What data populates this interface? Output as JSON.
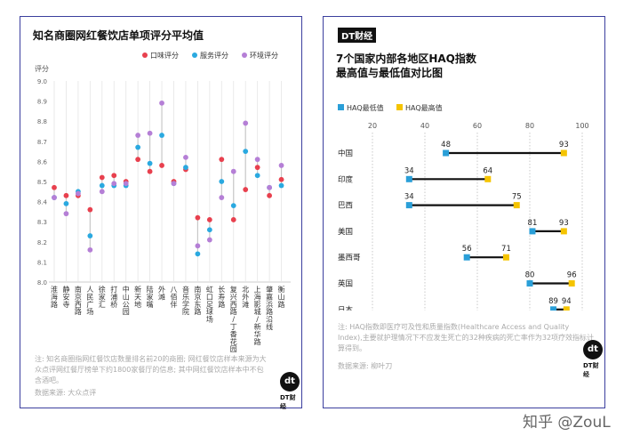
{
  "left_panel": {
    "title": "知名商圈网红餐饮店单项评分平均值",
    "note": "注: 知名商圈指网红餐饮店数量排名前20的商圈; 网红餐饮店样本来源为大众点评网红餐厅榜单下约1800家餐厅的信息; 其中网红餐饮店样本中不包含酒吧。",
    "source": "数据来源: 大众点评",
    "logo": "dt",
    "logo_label": "DT财经"
  },
  "right_panel": {
    "badge": "DT财经",
    "title_line1": "7个国家内部各地区HAQ指数",
    "title_line2": "最高值与最低值对比图",
    "note": "注: HAQ指数即医疗可及性和质量指数(Healthcare Access and Quality Index),主要就护理情况下不应发生死亡的32种疾病的死亡率作为32项疗效指标计算得到。",
    "source": "数据来源: 柳叶刀",
    "logo": "dt",
    "logo_label": "DT财经"
  },
  "watermark": "知乎 @ZouL",
  "colors": {
    "taste": "#e8404e",
    "service": "#2aa9e0",
    "environment": "#b57fd6",
    "haq_min": "#2a9fd8",
    "haq_max": "#f5c400"
  },
  "chart_data": [
    {
      "type": "scatter",
      "title": "知名商圈网红餐饮店单项评分平均值",
      "ylabel": "评分",
      "ylim": [
        8.0,
        9.0
      ],
      "yticks": [
        8.0,
        8.1,
        8.2,
        8.3,
        8.4,
        8.5,
        8.6,
        8.7,
        8.8,
        8.9,
        9.0
      ],
      "legend_position": "top-right",
      "categories": [
        "淮海路",
        "静安寺",
        "南京西路",
        "人民广场",
        "徐家汇",
        "打浦桥",
        "中山公园",
        "新天地",
        "陆家嘴",
        "外滩",
        "八佰伴",
        "音乐学院",
        "南京东路",
        "虹口足球场",
        "长寿路",
        "复兴西路/丁香花园",
        "北外滩",
        "上海影城/新华路",
        "肇嘉浜路沿线",
        "衡山路"
      ],
      "series": [
        {
          "name": "口味评分",
          "values": [
            8.47,
            8.43,
            8.43,
            8.36,
            8.52,
            8.53,
            8.5,
            8.61,
            8.55,
            8.58,
            8.5,
            8.56,
            8.32,
            8.31,
            8.61,
            8.31,
            8.46,
            8.57,
            8.43,
            8.51
          ]
        },
        {
          "name": "服务评分",
          "values": [
            8.42,
            8.39,
            8.45,
            8.23,
            8.48,
            8.48,
            8.48,
            8.67,
            8.59,
            8.73,
            8.49,
            8.57,
            8.14,
            8.26,
            8.5,
            8.38,
            8.65,
            8.53,
            8.47,
            8.48
          ]
        },
        {
          "name": "环境评分",
          "values": [
            8.42,
            8.34,
            8.44,
            8.16,
            8.45,
            8.49,
            8.49,
            8.73,
            8.74,
            8.89,
            8.49,
            8.62,
            8.18,
            8.21,
            8.42,
            8.55,
            8.79,
            8.61,
            8.47,
            8.58
          ]
        }
      ]
    },
    {
      "type": "scatter",
      "title": "7个国家内部各地区HAQ指数最高值与最低值对比图",
      "xlim": [
        20,
        100
      ],
      "xticks": [
        20,
        40,
        60,
        80,
        100
      ],
      "legend_position": "top-left",
      "categories": [
        "中国",
        "印度",
        "巴西",
        "美国",
        "墨西哥",
        "英国",
        "日本"
      ],
      "series": [
        {
          "name": "HAQ最低值",
          "values": [
            48,
            34,
            34,
            81,
            56,
            80,
            89
          ]
        },
        {
          "name": "HAQ最高值",
          "values": [
            93,
            64,
            75,
            93,
            71,
            96,
            94
          ]
        }
      ]
    }
  ]
}
